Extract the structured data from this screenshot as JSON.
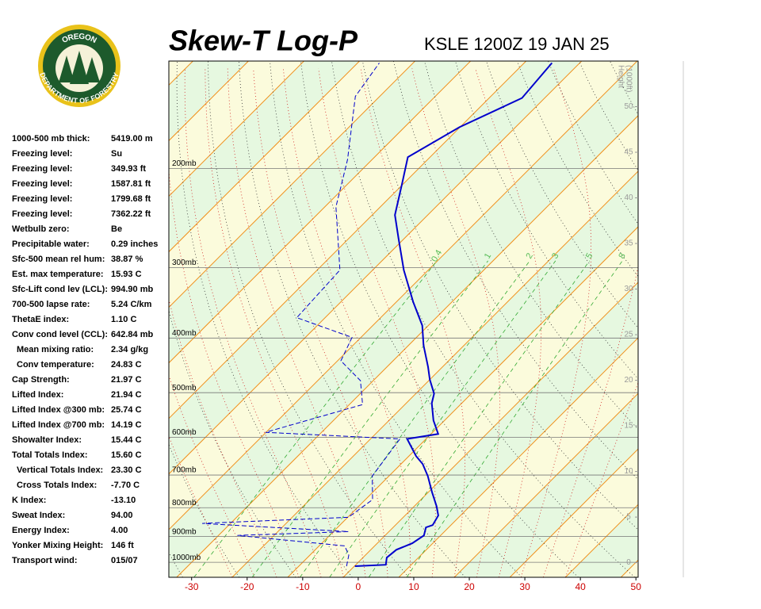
{
  "logo": {
    "top": "OREGON",
    "bottom": "DEPARTMENT OF FORESTRY"
  },
  "stats": {
    "rows": [
      [
        "1000-500 mb thick:",
        "5419.00 m"
      ],
      [
        "Freezing level:",
        "Su"
      ],
      [
        "Freezing level:",
        "349.93 ft"
      ],
      [
        "Freezing level:",
        "1587.81 ft"
      ],
      [
        "Freezing level:",
        "1799.68 ft"
      ],
      [
        "Freezing level:",
        "7362.22 ft"
      ],
      [
        "Wetbulb zero:",
        "Be"
      ],
      [
        "Precipitable water:",
        "0.29 inches"
      ],
      [
        "Sfc-500 mean rel hum:",
        "38.87 %"
      ],
      [
        "Est. max temperature:",
        "15.93 C"
      ],
      [
        "Sfc-Lift cond lev (LCL):",
        "994.90 mb"
      ],
      [
        "700-500 lapse rate:",
        "5.24 C/km"
      ],
      [
        "ThetaE index:",
        "1.10 C"
      ],
      [
        "Conv cond level (CCL):",
        "642.84 mb"
      ],
      [
        "Mean mixing ratio:",
        "2.34 g/kg"
      ],
      [
        "Conv temperature:",
        "24.83 C"
      ],
      [
        "Cap Strength:",
        "21.97 C"
      ],
      [
        "Lifted Index:",
        "21.94 C"
      ],
      [
        "Lifted Index @300 mb:",
        "25.74 C"
      ],
      [
        "Lifted Index @700 mb:",
        "14.19 C"
      ],
      [
        "Showalter Index:",
        "15.44 C"
      ],
      [
        "Total Totals Index:",
        "15.60 C"
      ],
      [
        "Vertical Totals Index:",
        "23.30 C"
      ],
      [
        "Cross Totals Index:",
        "-7.70 C"
      ],
      [
        "K Index:",
        "-13.10"
      ],
      [
        "Sweat Index:",
        "94.00"
      ],
      [
        "Energy Index:",
        "4.00"
      ],
      [
        "Yonker Mixing Height:",
        "146 ft"
      ],
      [
        "Transport wind:",
        "015/07"
      ]
    ]
  },
  "chart_data": {
    "type": "skewt",
    "title": "Skew-T Log-P",
    "subtitle": "KSLE 1200Z 19 JAN 25",
    "xlim": [
      -34.1,
      50.4
    ],
    "xticks": [
      -30,
      -20,
      -10,
      0,
      10,
      20,
      30,
      40,
      50
    ],
    "ylim": [
      1063,
      129
    ],
    "log_y": true,
    "yticks": [
      {
        "value": 1000,
        "label": "1000mb"
      },
      {
        "value": 900,
        "label": "900mb"
      },
      {
        "value": 800,
        "label": "800mb"
      },
      {
        "value": 700,
        "label": "700mb"
      },
      {
        "value": 600,
        "label": "600mb"
      },
      {
        "value": 500,
        "label": "500mb"
      },
      {
        "value": 400,
        "label": "400mb"
      },
      {
        "value": 300,
        "label": "300mb"
      },
      {
        "value": 200,
        "label": "200mb"
      }
    ],
    "y2label": [
      "Height",
      "(1000ft)"
    ],
    "y2lim": [
      -1.6,
      55
    ],
    "y2ticks": [
      0,
      5,
      10,
      15,
      20,
      25,
      30,
      35,
      40,
      45,
      50
    ],
    "mixing_ratios": [
      0.4,
      1,
      2,
      3,
      5,
      8
    ],
    "series": [
      {
        "color": "#0000cc",
        "style": "solid",
        "pressure": [
          1016,
          1010,
          981,
          950,
          925,
          896,
          867,
          859,
          826,
          795,
          750,
          703,
          669,
          648,
          604,
          592,
          560,
          522,
          502,
          474,
          450,
          412,
          380,
          345,
          303,
          266,
          242,
          212,
          191,
          169,
          150,
          130
        ],
        "values": [
          0.1,
          5.4,
          4.3,
          4.6,
          6.3,
          7.0,
          5.9,
          6.7,
          6.0,
          4.0,
          0.6,
          -3.0,
          -6.1,
          -8.7,
          -13.4,
          -8.7,
          -12.0,
          -15.4,
          -16.7,
          -20.0,
          -22.6,
          -27.3,
          -31.1,
          -37.0,
          -44.4,
          -51.1,
          -55.9,
          -60.4,
          -64.0,
          -60.1,
          -54.1,
          -55.0
        ]
      },
      {
        "color": "#0000cc",
        "style": "dashed",
        "pressure": [
          1016,
          971,
          935,
          896,
          882,
          853,
          832,
          774,
          703,
          604,
          588,
          525,
          476,
          439,
          399,
          368,
          303,
          234,
          193,
          149,
          130
        ],
        "values": [
          -1.4,
          -3.0,
          -5.4,
          -26.6,
          -7.3,
          -35.1,
          -9.9,
          -8.7,
          -13.0,
          -14.7,
          -40.1,
          -27.6,
          -32.3,
          -39.4,
          -41.6,
          -55.1,
          -55.9,
          -68.0,
          -74.4,
          -84.4,
          -86.1
        ]
      }
    ]
  }
}
